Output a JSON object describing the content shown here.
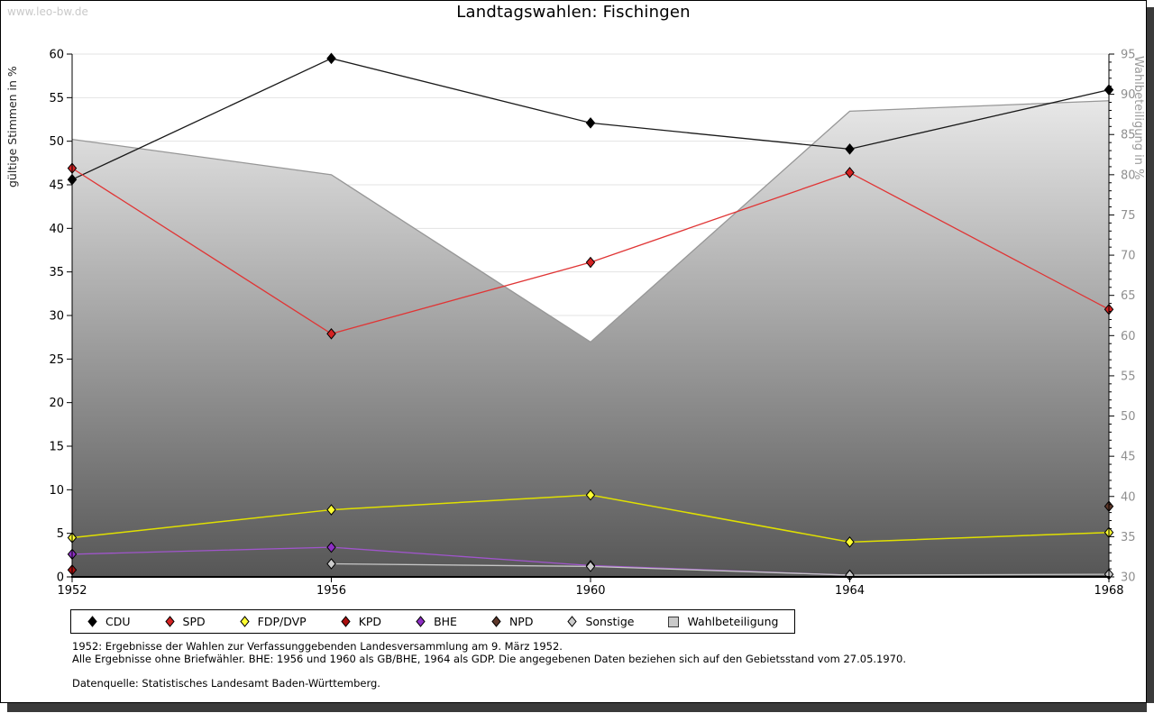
{
  "watermark": "www.leo-bw.de",
  "header": {
    "title": "Landtagswahlen: Fischingen"
  },
  "footnotes": {
    "line1": "1952: Ergebnisse der Wahlen zur Verfassunggebenden Landesversammlung am 9. März 1952.",
    "line2": "Alle Ergebnisse ohne Briefwähler. BHE: 1956 und 1960 als GB/BHE, 1964 als GDP. Die angegebenen Daten beziehen sich auf den Gebietsstand vom 27.05.1970.",
    "source": "Datenquelle: Statistisches Landesamt Baden-Württemberg."
  },
  "chart_data": {
    "type": "line",
    "title": "Landtagswahlen: Fischingen",
    "x": [
      1952,
      1956,
      1960,
      1964,
      1968
    ],
    "ylabel_left": "gültige Stimmen in %",
    "ylabel_right": "Wahlbeteiligung in %",
    "ylim_left": [
      0,
      60
    ],
    "ylim_right": [
      30,
      95
    ],
    "yticks_left": [
      0,
      5,
      10,
      15,
      20,
      25,
      30,
      35,
      40,
      45,
      50,
      55,
      60
    ],
    "yticks_right": [
      30,
      35,
      40,
      45,
      50,
      55,
      60,
      65,
      70,
      75,
      80,
      85,
      90,
      95
    ],
    "grid": "horizontal",
    "legend_position": "bottom",
    "series": [
      {
        "name": "CDU",
        "color": "#000000",
        "line": "#1a1a1a",
        "values": [
          45.6,
          59.5,
          52.1,
          49.1,
          55.9
        ]
      },
      {
        "name": "SPD",
        "color": "#d42222",
        "line": "#e03535",
        "values": [
          46.9,
          27.9,
          36.1,
          46.4,
          30.7
        ]
      },
      {
        "name": "FDP/DVP",
        "color": "#ffff33",
        "line": "#e0e000",
        "values": [
          4.5,
          7.7,
          9.4,
          4.0,
          5.1
        ]
      },
      {
        "name": "KPD",
        "color": "#aa0f0f",
        "line": "#aa0f0f",
        "values": [
          0.8,
          null,
          null,
          null,
          null
        ]
      },
      {
        "name": "BHE",
        "color": "#8d2fc4",
        "line": "#a055cc",
        "values": [
          2.6,
          3.4,
          1.3,
          0.2,
          null
        ]
      },
      {
        "name": "NPD",
        "color": "#5e382a",
        "line": "#5e382a",
        "values": [
          null,
          null,
          null,
          null,
          8.1
        ]
      },
      {
        "name": "Sonstige",
        "color": "#cccccc",
        "line": "#c6c6c6",
        "values": [
          null,
          1.5,
          1.2,
          0.2,
          0.3
        ]
      }
    ],
    "turnout": {
      "name": "Wahlbeteiligung",
      "axis": "right",
      "values": [
        84.4,
        80.0,
        59.2,
        87.9,
        89.2
      ],
      "fill_top": "#f6f6f6",
      "fill_bottom": "#565656",
      "edge": "#979797",
      "legend_fill": "#c9c9c9"
    },
    "colors": {
      "grid": "#e3e3e3",
      "axis": "#000000",
      "right_tick_text": "#8f8f8f",
      "right_axis_label": "#9a9a9a"
    }
  }
}
